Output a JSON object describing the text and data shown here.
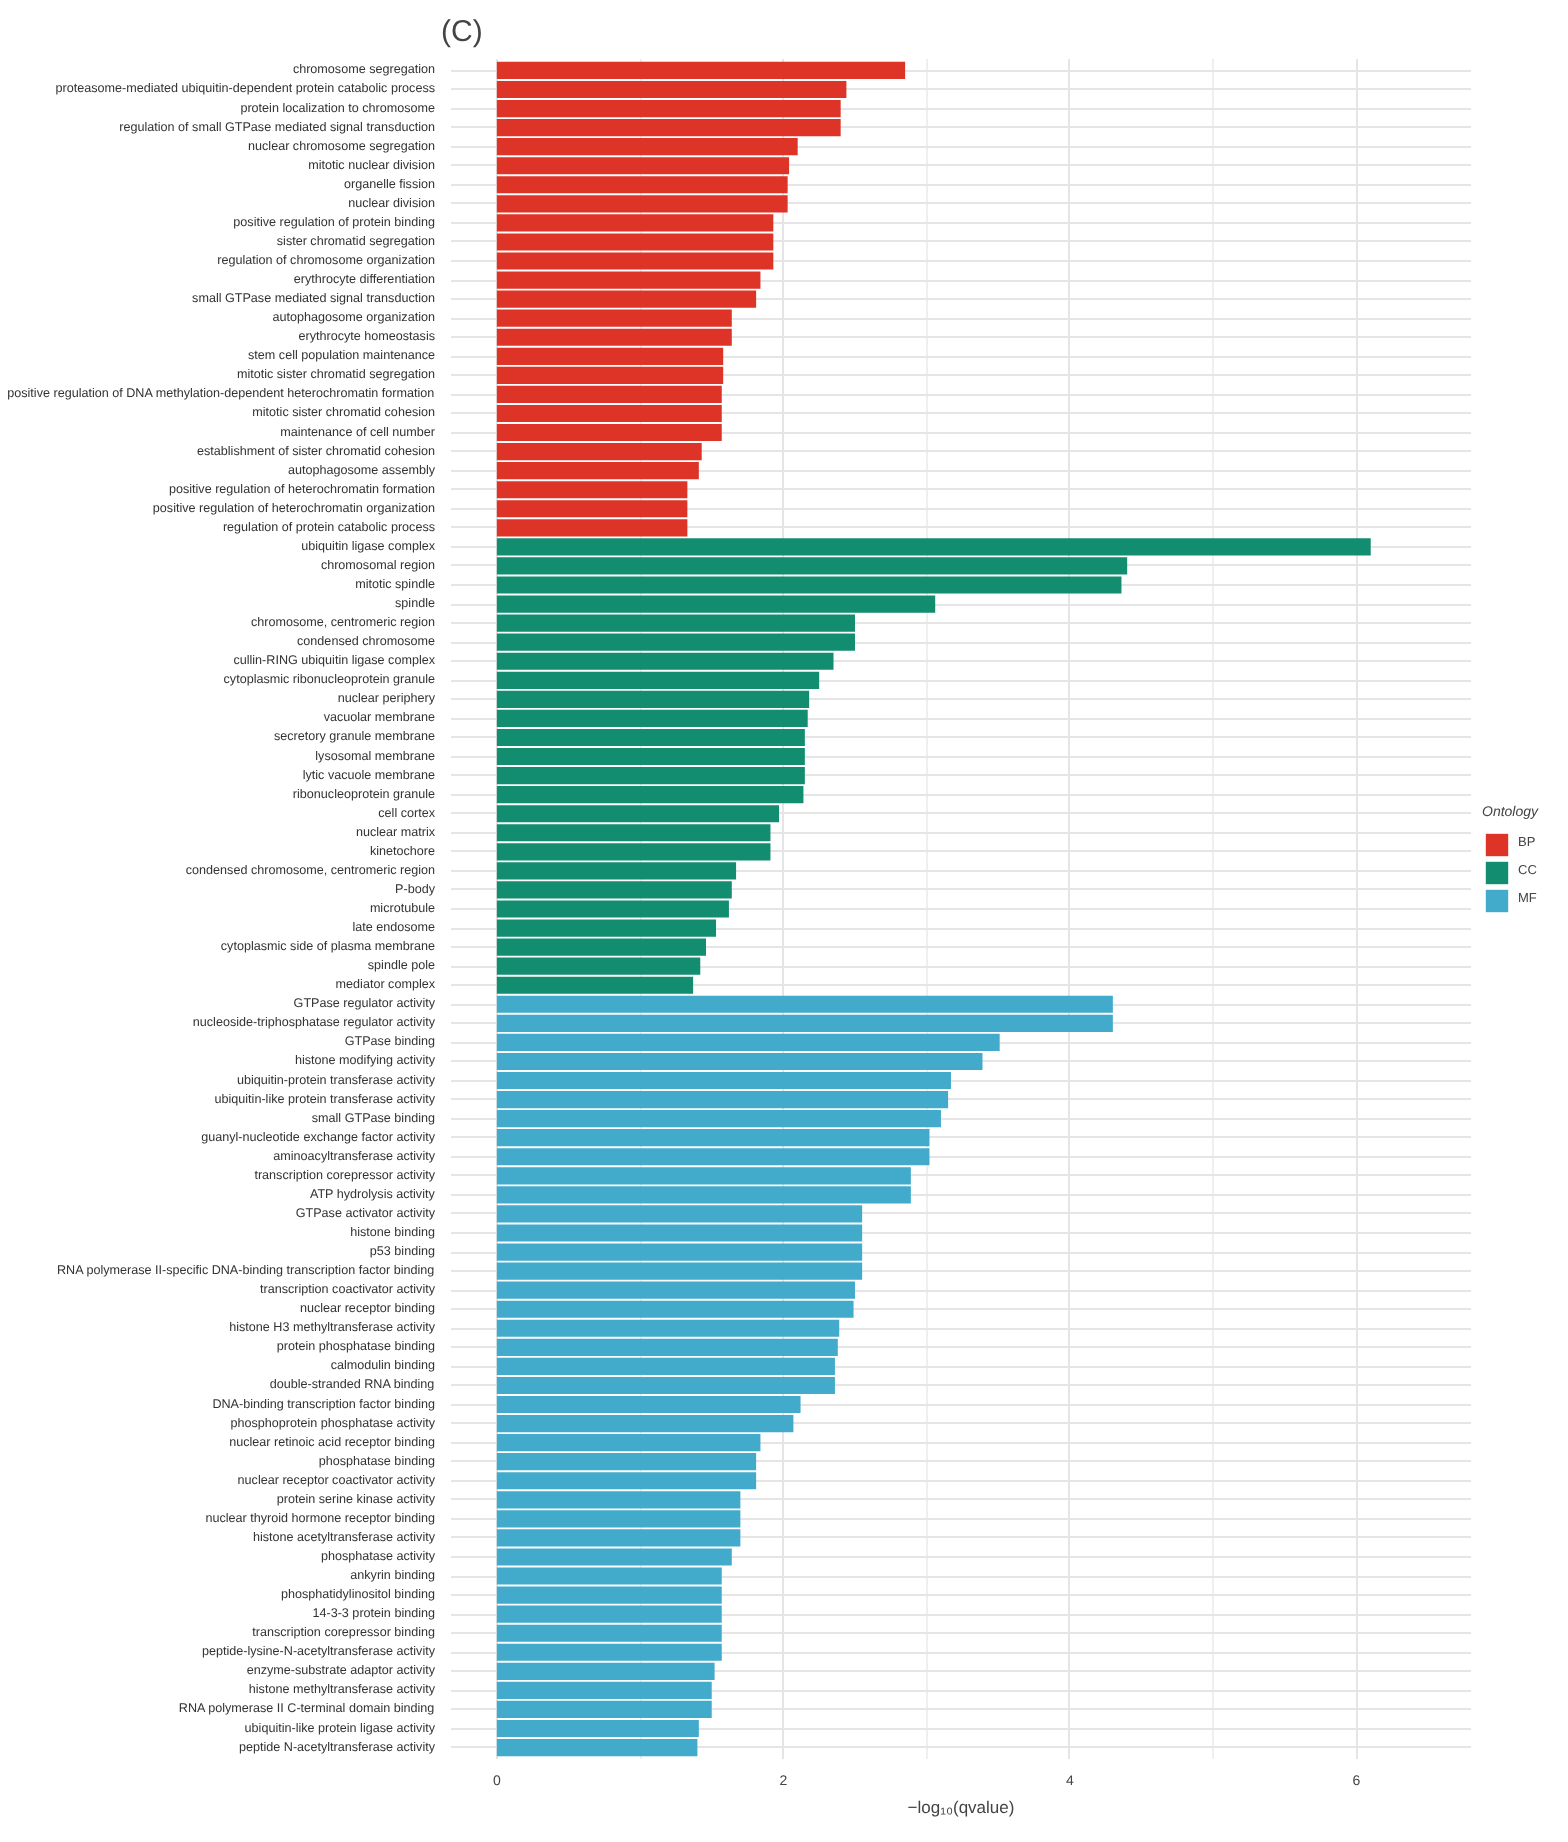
{
  "chart_data": {
    "type": "bar",
    "orientation": "horizontal",
    "title": "(C)",
    "xlabel": "−log₁₀(qvalue)",
    "legend_title": "Ontology",
    "legend": "right",
    "grid": true,
    "xlim": [
      -0.32,
      6.8
    ],
    "xticks": [
      0,
      2,
      4,
      6
    ],
    "categories": [
      "chromosome segregation",
      "proteasome-mediated ubiquitin-dependent protein catabolic process",
      "protein localization to chromosome",
      "regulation of small GTPase mediated signal transduction",
      "nuclear chromosome segregation",
      "mitotic nuclear division",
      "organelle fission",
      "nuclear division",
      "positive regulation of protein binding",
      "sister chromatid segregation",
      "regulation of chromosome organization",
      "erythrocyte differentiation",
      "small GTPase mediated signal transduction",
      "autophagosome organization",
      "erythrocyte homeostasis",
      "stem cell population maintenance",
      "mitotic sister chromatid segregation",
      "positive regulation of DNA methylation-dependent heterochromatin formation",
      "mitotic sister chromatid cohesion",
      "maintenance of cell number",
      "establishment of sister chromatid cohesion",
      "autophagosome assembly",
      "positive regulation of heterochromatin formation",
      "positive regulation of heterochromatin organization",
      "regulation of protein catabolic process",
      "ubiquitin ligase complex",
      "chromosomal region",
      "mitotic spindle",
      "spindle",
      "chromosome, centromeric region",
      "condensed chromosome",
      "cullin-RING ubiquitin ligase complex",
      "cytoplasmic ribonucleoprotein granule",
      "nuclear periphery",
      "vacuolar membrane",
      "secretory granule membrane",
      "lysosomal membrane",
      "lytic vacuole membrane",
      "ribonucleoprotein granule",
      "cell cortex",
      "nuclear matrix",
      "kinetochore",
      "condensed chromosome, centromeric region",
      "P-body",
      "microtubule",
      "late endosome",
      "cytoplasmic side of plasma membrane",
      "spindle pole",
      "mediator complex",
      "GTPase regulator activity",
      "nucleoside-triphosphatase regulator activity",
      "GTPase binding",
      "histone modifying activity",
      "ubiquitin-protein transferase activity",
      "ubiquitin-like protein transferase activity",
      "small GTPase binding",
      "guanyl-nucleotide exchange factor activity",
      "aminoacyltransferase activity",
      "transcription corepressor activity",
      "ATP hydrolysis activity",
      "GTPase activator activity",
      "histone binding",
      "p53 binding",
      "RNA polymerase II-specific DNA-binding transcription factor binding",
      "transcription coactivator activity",
      "nuclear receptor binding",
      "histone H3 methyltransferase activity",
      "protein phosphatase binding",
      "calmodulin binding",
      "double-stranded RNA binding",
      "DNA-binding transcription factor binding",
      "phosphoprotein phosphatase activity",
      "nuclear retinoic acid receptor binding",
      "phosphatase binding",
      "nuclear receptor coactivator activity",
      "protein serine kinase activity",
      "nuclear thyroid hormone receptor binding",
      "histone acetyltransferase activity",
      "phosphatase activity",
      "ankyrin binding",
      "phosphatidylinositol binding",
      "14-3-3 protein binding",
      "transcription corepressor binding",
      "peptide-lysine-N-acetyltransferase activity",
      "enzyme-substrate adaptor activity",
      "histone methyltransferase activity",
      "RNA polymerase II C-terminal domain binding",
      "ubiquitin-like protein ligase activity",
      "peptide N-acetyltransferase activity"
    ],
    "series": [
      {
        "name": "BP",
        "color": "#de3427",
        "values": [
          2.85,
          2.44,
          2.4,
          2.4,
          2.1,
          2.04,
          2.03,
          2.03,
          1.93,
          1.93,
          1.93,
          1.84,
          1.81,
          1.64,
          1.64,
          1.58,
          1.58,
          1.57,
          1.57,
          1.57,
          1.43,
          1.41,
          1.33,
          1.33,
          1.33,
          null,
          null,
          null,
          null,
          null,
          null,
          null,
          null,
          null,
          null,
          null,
          null,
          null,
          null,
          null,
          null,
          null,
          null,
          null,
          null,
          null,
          null,
          null,
          null,
          null,
          null,
          null,
          null,
          null,
          null,
          null,
          null,
          null,
          null,
          null,
          null,
          null,
          null,
          null,
          null,
          null,
          null,
          null,
          null,
          null,
          null,
          null,
          null,
          null,
          null,
          null,
          null,
          null,
          null,
          null,
          null,
          null,
          null,
          null,
          null,
          null,
          null,
          null,
          null
        ]
      },
      {
        "name": "CC",
        "color": "#138d70",
        "values": [
          null,
          null,
          null,
          null,
          null,
          null,
          null,
          null,
          null,
          null,
          null,
          null,
          null,
          null,
          null,
          null,
          null,
          null,
          null,
          null,
          null,
          null,
          null,
          null,
          null,
          6.1,
          4.4,
          4.36,
          3.06,
          2.5,
          2.5,
          2.35,
          2.25,
          2.18,
          2.17,
          2.15,
          2.15,
          2.15,
          2.14,
          1.97,
          1.91,
          1.91,
          1.67,
          1.64,
          1.62,
          1.53,
          1.46,
          1.42,
          1.37,
          null,
          null,
          null,
          null,
          null,
          null,
          null,
          null,
          null,
          null,
          null,
          null,
          null,
          null,
          null,
          null,
          null,
          null,
          null,
          null,
          null,
          null,
          null,
          null,
          null,
          null,
          null,
          null,
          null,
          null,
          null,
          null,
          null,
          null,
          null,
          null,
          null,
          null,
          null,
          null
        ]
      },
      {
        "name": "MF",
        "color": "#42abcb",
        "values": [
          null,
          null,
          null,
          null,
          null,
          null,
          null,
          null,
          null,
          null,
          null,
          null,
          null,
          null,
          null,
          null,
          null,
          null,
          null,
          null,
          null,
          null,
          null,
          null,
          null,
          null,
          null,
          null,
          null,
          null,
          null,
          null,
          null,
          null,
          null,
          null,
          null,
          null,
          null,
          null,
          null,
          null,
          null,
          null,
          null,
          null,
          null,
          null,
          null,
          4.3,
          4.3,
          3.51,
          3.39,
          3.17,
          3.15,
          3.1,
          3.02,
          3.02,
          2.89,
          2.89,
          2.55,
          2.55,
          2.55,
          2.55,
          2.5,
          2.49,
          2.39,
          2.38,
          2.36,
          2.36,
          2.12,
          2.07,
          1.84,
          1.81,
          1.81,
          1.7,
          1.7,
          1.7,
          1.64,
          1.57,
          1.57,
          1.57,
          1.57,
          1.57,
          1.52,
          1.5,
          1.5,
          1.41,
          1.4
        ]
      }
    ]
  }
}
